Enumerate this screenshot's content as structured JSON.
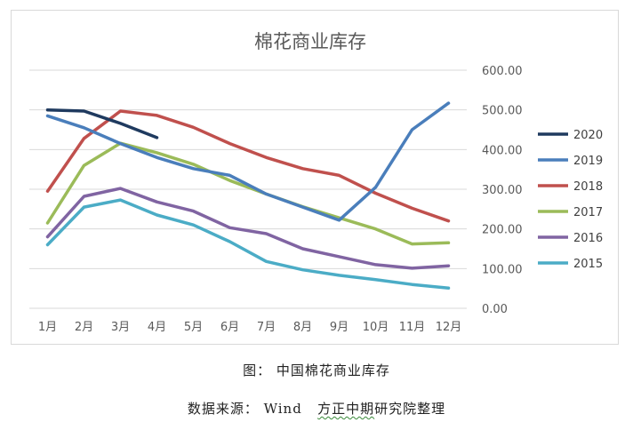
{
  "chart_data": {
    "type": "line",
    "title": "棉花商业库存",
    "categories": [
      "1月",
      "2月",
      "3月",
      "4月",
      "5月",
      "6月",
      "7月",
      "8月",
      "9月",
      "10月",
      "11月",
      "12月"
    ],
    "y_axis": {
      "position": "right",
      "min": 0,
      "max": 600,
      "step": 100,
      "tick_labels": [
        "0.00",
        "100.00",
        "200.00",
        "300.00",
        "400.00",
        "500.00",
        "600.00"
      ]
    },
    "legend_position": "right",
    "series": [
      {
        "name": "2020",
        "color": "#1f3a5f",
        "values": [
          500,
          497,
          466,
          430,
          null,
          null,
          null,
          null,
          null,
          null,
          null,
          null
        ]
      },
      {
        "name": "2019",
        "color": "#4a7ebb",
        "values": [
          485,
          455,
          415,
          380,
          352,
          335,
          288,
          255,
          222,
          305,
          450,
          517
        ]
      },
      {
        "name": "2018",
        "color": "#c0504d",
        "values": [
          295,
          428,
          497,
          486,
          456,
          415,
          380,
          352,
          335,
          290,
          252,
          220
        ]
      },
      {
        "name": "2017",
        "color": "#9bbb59",
        "values": [
          215,
          360,
          416,
          392,
          363,
          322,
          288,
          256,
          228,
          200,
          162,
          165
        ]
      },
      {
        "name": "2016",
        "color": "#8064a2",
        "values": [
          180,
          282,
          302,
          268,
          245,
          203,
          188,
          150,
          130,
          110,
          101,
          107
        ]
      },
      {
        "name": "2015",
        "color": "#4bacc6",
        "values": [
          160,
          255,
          273,
          235,
          210,
          168,
          118,
          97,
          83,
          72,
          60,
          51
        ]
      }
    ]
  },
  "captions": {
    "figure": "图： 中国棉花商业库存",
    "source_prefix": "数据来源： Wind ",
    "source_org_a": "方正中期",
    "source_org_b": "研究院整理"
  }
}
